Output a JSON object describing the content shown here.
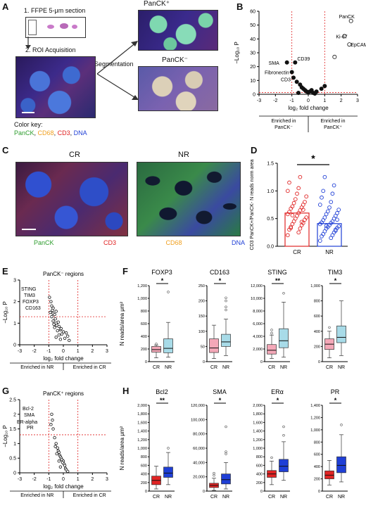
{
  "panel_letters": {
    "A": "A",
    "B": "B",
    "C": "C",
    "D": "D",
    "E": "E",
    "F": "F",
    "G": "G",
    "H": "H"
  },
  "panelA": {
    "step1": "1. FFPE 5-μm section",
    "step2": "2. ROI Acquisition",
    "step3": "3. Segmentation",
    "pos_label": "PanCK⁺",
    "neg_label": "PanCK⁻",
    "color_key_title": "Color key:",
    "color_key": [
      {
        "text": "PanCK",
        "color": "#2e9d2e"
      },
      {
        "text": "CD68",
        "color": "#f0a020"
      },
      {
        "text": "CD3",
        "color": "#e02020"
      },
      {
        "text": "DNA",
        "color": "#1f3fd6"
      }
    ]
  },
  "panelB_text": {
    "ylabel": "−Log₁₀ P",
    "xlabel": "log₂ fold change",
    "left_note": [
      "Enriched in",
      "PanCK⁻"
    ],
    "right_note": [
      "Enriched in",
      "PanCK⁺"
    ],
    "annot": [
      "PanCK",
      "Ki-67",
      "EpCAM",
      "SMA",
      "CD39",
      "Fibronectin",
      "CD3"
    ]
  },
  "panelC": {
    "cr_title": "CR",
    "nr_title": "NR",
    "legend": [
      {
        "text": "PanCK",
        "color": "#2e9d2e"
      },
      {
        "text": "CD3",
        "color": "#e02020"
      },
      {
        "text": "CD68",
        "color": "#f0a020"
      },
      {
        "text": "DNA",
        "color": "#1f3fd6"
      }
    ]
  },
  "panelD_text": {
    "ylabel": "CD3 PanCK+/PanCK- N reads norm area",
    "sig": "*"
  },
  "panelE_text": {
    "title": "PanCK⁻ regions",
    "ylabel": "−Log₁₀ P",
    "xlabel": "log₂ fold change",
    "left_note": "Enriched in NR",
    "right_note": "Enriched in CR",
    "annot": [
      "STING",
      "TIM3",
      "FOXP3",
      "CD163"
    ]
  },
  "panelF_text": {
    "ylabel": "N reads/area μm²"
  },
  "panelG_text": {
    "title": "PanCK⁺ regions",
    "ylabel": "−Log₁₀ P",
    "xlabel": "log₂ fold change",
    "left_note": "Enriched in NR",
    "right_note": "Enriched in CR",
    "annot": [
      "Bcl-2",
      "SMA",
      "ER-alpha",
      "PR"
    ]
  },
  "panelH_text": {
    "ylabel": "N reads/area μm²"
  },
  "colors": {
    "cr_pink": "#f4a8b8",
    "nr_lightblue": "#a8dbe8",
    "cr_red": "#e02424",
    "nr_blue": "#1f3fd6",
    "threshold": "#e02020"
  },
  "chart_data": [
    {
      "id": "B",
      "type": "scatter",
      "title": "",
      "xlabel": "log₂ fold change",
      "ylabel": "−Log₁₀ P",
      "xlim": [
        -3,
        3
      ],
      "ylim": [
        0,
        60
      ],
      "xticks": [
        -3,
        -2,
        -1,
        0,
        1,
        2,
        3
      ],
      "yticks": [
        0,
        10,
        20,
        30,
        40,
        50,
        60
      ],
      "points": [
        {
          "x": 2.6,
          "y": 53,
          "label": "PanCK"
        },
        {
          "x": 2.2,
          "y": 42,
          "label": "Ki-67"
        },
        {
          "x": 2.5,
          "y": 36,
          "label": "EpCAM"
        },
        {
          "x": 1.6,
          "y": 27
        },
        {
          "x": -1.3,
          "y": 23,
          "label": "SMA"
        },
        {
          "x": -0.8,
          "y": 23,
          "label": "CD39"
        },
        {
          "x": -1.0,
          "y": 16,
          "label": "Fibronectin"
        },
        {
          "x": -0.9,
          "y": 12,
          "label": "CD3"
        },
        {
          "x": -0.7,
          "y": 9
        },
        {
          "x": -0.5,
          "y": 7
        },
        {
          "x": -0.4,
          "y": 5
        },
        {
          "x": -0.3,
          "y": 4
        },
        {
          "x": -0.2,
          "y": 3
        },
        {
          "x": -0.1,
          "y": 2
        },
        {
          "x": 0.0,
          "y": 1.5
        },
        {
          "x": 0.1,
          "y": 2
        },
        {
          "x": 0.2,
          "y": 3
        },
        {
          "x": 0.3,
          "y": 1
        },
        {
          "x": 0.5,
          "y": 2
        },
        {
          "x": 0.8,
          "y": 4
        },
        {
          "x": 1.0,
          "y": 6
        },
        {
          "x": -0.6,
          "y": 1
        },
        {
          "x": 0.4,
          "y": 0.5
        }
      ],
      "thresholds": {
        "x": [
          -1,
          1
        ],
        "y": 1.3
      }
    },
    {
      "id": "D",
      "type": "bar",
      "categories": [
        "CR",
        "NR"
      ],
      "values": [
        0.6,
        0.41
      ],
      "ylim": [
        0,
        1.5
      ],
      "yticks": [
        0,
        0.5,
        1.0,
        1.5
      ],
      "colors": [
        "#e02424",
        "#1f3fd6"
      ],
      "points_cr": [
        0.2,
        0.25,
        0.3,
        0.32,
        0.35,
        0.38,
        0.4,
        0.42,
        0.45,
        0.48,
        0.5,
        0.52,
        0.55,
        0.58,
        0.6,
        0.62,
        0.65,
        0.68,
        0.7,
        0.72,
        0.75,
        0.78,
        0.8,
        0.85,
        0.9,
        0.95,
        1.0,
        1.05,
        1.15,
        1.25,
        0.33,
        0.44,
        0.56,
        0.66
      ],
      "points_nr": [
        0.1,
        0.15,
        0.18,
        0.2,
        0.22,
        0.25,
        0.27,
        0.3,
        0.32,
        0.33,
        0.35,
        0.36,
        0.38,
        0.4,
        0.42,
        0.43,
        0.45,
        0.47,
        0.5,
        0.52,
        0.55,
        0.58,
        0.6,
        0.63,
        0.66,
        0.7,
        0.75,
        0.8,
        0.88,
        0.95,
        1.0,
        1.1,
        1.25,
        0.28,
        0.37,
        0.48
      ],
      "significance": "*"
    },
    {
      "id": "E",
      "type": "scatter",
      "title": "PanCK⁻ regions",
      "xlabel": "log₂ fold change",
      "ylabel": "−Log₁₀ P",
      "xlim": [
        -3,
        3
      ],
      "ylim": [
        0,
        3
      ],
      "xticks": [
        -3,
        -2,
        -1,
        0,
        1,
        2,
        3
      ],
      "yticks": [
        0,
        1,
        2,
        3
      ],
      "thresholds": {
        "x": [
          -1,
          1
        ],
        "y": 1.3
      },
      "points": [
        {
          "x": -0.95,
          "y": 2.2,
          "label": "STING"
        },
        {
          "x": -0.85,
          "y": 2.0,
          "label": "TIM3"
        },
        {
          "x": -0.8,
          "y": 1.8,
          "label": "FOXP3"
        },
        {
          "x": -0.75,
          "y": 1.6,
          "label": "CD163"
        },
        {
          "x": -0.9,
          "y": 1.5
        },
        {
          "x": -0.7,
          "y": 1.45
        },
        {
          "x": -0.6,
          "y": 1.4
        },
        {
          "x": -0.8,
          "y": 1.3
        },
        {
          "x": -0.55,
          "y": 1.2
        },
        {
          "x": -0.7,
          "y": 1.1
        },
        {
          "x": -0.5,
          "y": 1.0
        },
        {
          "x": -0.65,
          "y": 0.95
        },
        {
          "x": -0.45,
          "y": 0.9
        },
        {
          "x": -0.3,
          "y": 0.85
        },
        {
          "x": -0.6,
          "y": 0.8
        },
        {
          "x": -0.2,
          "y": 0.7
        },
        {
          "x": -0.4,
          "y": 0.65
        },
        {
          "x": 0.0,
          "y": 0.6
        },
        {
          "x": -0.1,
          "y": 0.5
        },
        {
          "x": 0.2,
          "y": 0.55
        },
        {
          "x": -0.3,
          "y": 0.45
        },
        {
          "x": 0.3,
          "y": 0.4
        },
        {
          "x": -0.5,
          "y": 0.35
        },
        {
          "x": 0.1,
          "y": 0.3
        },
        {
          "x": -0.2,
          "y": 0.25
        },
        {
          "x": 0.4,
          "y": 0.2
        },
        {
          "x": -0.7,
          "y": 1.7
        },
        {
          "x": -0.5,
          "y": 1.55
        },
        {
          "x": -0.35,
          "y": 1.05
        },
        {
          "x": -0.15,
          "y": 0.75
        }
      ]
    },
    {
      "id": "F",
      "type": "box",
      "ylabel": "N reads/area μm²",
      "plots": [
        {
          "title": "FOXP3",
          "ylim": [
            0,
            1200
          ],
          "yticks": [
            0,
            200,
            400,
            600,
            800,
            1000,
            1200
          ],
          "sig": "*",
          "boxes": [
            {
              "cat": "CR",
              "min": 60,
              "q1": 150,
              "med": 190,
              "q3": 240,
              "max": 260,
              "out": [
                280
              ]
            },
            {
              "cat": "NR",
              "min": 70,
              "q1": 140,
              "med": 210,
              "q3": 360,
              "max": 620,
              "out": [
                1100
              ]
            }
          ]
        },
        {
          "title": "CD163",
          "ylim": [
            0,
            250
          ],
          "yticks": [
            0,
            50,
            100,
            150,
            200,
            250
          ],
          "sig": "*",
          "boxes": [
            {
              "cat": "CR",
              "min": 10,
              "q1": 30,
              "med": 45,
              "q3": 75,
              "max": 120,
              "out": []
            },
            {
              "cat": "NR",
              "min": 20,
              "q1": 50,
              "med": 65,
              "q3": 90,
              "max": 140,
              "out": [
                170,
                180,
                200,
                210
              ]
            }
          ]
        },
        {
          "title": "STING",
          "ylim": [
            0,
            12000
          ],
          "yticks": [
            0,
            2000,
            4000,
            6000,
            8000,
            10000,
            12000
          ],
          "sig": "**",
          "boxes": [
            {
              "cat": "CR",
              "min": 500,
              "q1": 1200,
              "med": 1800,
              "q3": 2700,
              "max": 4200,
              "out": [
                4500,
                5000
              ]
            },
            {
              "cat": "NR",
              "min": 700,
              "q1": 2200,
              "med": 3300,
              "q3": 5200,
              "max": 9400,
              "out": [
                10800
              ]
            }
          ]
        },
        {
          "title": "TIM3",
          "ylim": [
            0,
            1000
          ],
          "yticks": [
            0,
            200,
            400,
            600,
            800,
            1000
          ],
          "sig": "*",
          "boxes": [
            {
              "cat": "CR",
              "min": 50,
              "q1": 160,
              "med": 230,
              "q3": 300,
              "max": 400,
              "out": [
                450
              ]
            },
            {
              "cat": "NR",
              "min": 80,
              "q1": 250,
              "med": 320,
              "q3": 470,
              "max": 800,
              "out": []
            }
          ]
        }
      ]
    },
    {
      "id": "G",
      "type": "scatter",
      "title": "PanCK⁺ regions",
      "xlabel": "log₂ fold change",
      "ylabel": "−Log₁₀ P",
      "xlim": [
        -3,
        3
      ],
      "ylim": [
        0,
        2.5
      ],
      "xticks": [
        -3,
        -2,
        -1,
        0,
        1,
        2,
        3
      ],
      "yticks": [
        0,
        0.5,
        1.0,
        1.5,
        2.0,
        2.5
      ],
      "thresholds": {
        "x": [
          -1,
          1
        ],
        "y": 1.3
      },
      "points": [
        {
          "x": -0.8,
          "y": 2.0,
          "label": "Bcl-2"
        },
        {
          "x": -0.75,
          "y": 1.8,
          "label": "SMA"
        },
        {
          "x": -0.85,
          "y": 1.65,
          "label": "ER-alpha"
        },
        {
          "x": -0.7,
          "y": 1.5,
          "label": "PR"
        },
        {
          "x": -0.6,
          "y": 1.2
        },
        {
          "x": -0.5,
          "y": 1.0
        },
        {
          "x": -0.55,
          "y": 0.9
        },
        {
          "x": -0.4,
          "y": 0.85
        },
        {
          "x": -0.35,
          "y": 0.75
        },
        {
          "x": -0.3,
          "y": 0.7
        },
        {
          "x": -0.25,
          "y": 0.6
        },
        {
          "x": -0.2,
          "y": 0.55
        },
        {
          "x": -0.15,
          "y": 0.5
        },
        {
          "x": -0.1,
          "y": 0.45
        },
        {
          "x": 0.0,
          "y": 0.4
        },
        {
          "x": -0.05,
          "y": 0.35
        },
        {
          "x": 0.05,
          "y": 0.3
        },
        {
          "x": 0.1,
          "y": 0.25
        },
        {
          "x": -0.2,
          "y": 0.2
        },
        {
          "x": 0.15,
          "y": 0.15
        },
        {
          "x": -0.3,
          "y": 0.4
        },
        {
          "x": 0.2,
          "y": 0.1
        },
        {
          "x": -0.45,
          "y": 0.65
        },
        {
          "x": 0.3,
          "y": 0.05
        }
      ]
    },
    {
      "id": "H",
      "type": "box",
      "ylabel": "N reads/area μm²",
      "plots": [
        {
          "title": "Bcl2",
          "ylim": [
            0,
            2000
          ],
          "yticks": [
            0,
            200,
            400,
            600,
            800,
            1000,
            1200,
            1400,
            1600,
            1800,
            2000
          ],
          "sig": "**",
          "boxes": [
            {
              "cat": "CR",
              "min": 50,
              "q1": 150,
              "med": 250,
              "q3": 350,
              "max": 580,
              "out": []
            },
            {
              "cat": "NR",
              "min": 150,
              "q1": 320,
              "med": 420,
              "q3": 560,
              "max": 900,
              "out": [
                1000
              ]
            }
          ]
        },
        {
          "title": "SMA",
          "ylim": [
            0,
            120000
          ],
          "yticks": [
            0,
            20000,
            40000,
            60000,
            80000,
            100000,
            120000
          ],
          "sig": "*",
          "boxes": [
            {
              "cat": "CR",
              "min": 1000,
              "q1": 5000,
              "med": 8000,
              "q3": 11000,
              "max": 18000,
              "out": [
                22000,
                25000
              ]
            },
            {
              "cat": "NR",
              "min": 3000,
              "q1": 10000,
              "med": 16000,
              "q3": 24000,
              "max": 40000,
              "out": [
                52000,
                55000,
                90000
              ]
            }
          ]
        },
        {
          "title": "ERα",
          "ylim": [
            0,
            2000
          ],
          "yticks": [
            0,
            200,
            400,
            600,
            800,
            1000,
            1200,
            1400,
            1600,
            1800,
            2000
          ],
          "sig": "*",
          "boxes": [
            {
              "cat": "CR",
              "min": 150,
              "q1": 320,
              "med": 400,
              "q3": 480,
              "max": 700,
              "out": [
                780
              ]
            },
            {
              "cat": "NR",
              "min": 250,
              "q1": 450,
              "med": 580,
              "q3": 740,
              "max": 1150,
              "out": [
                1300,
                1500
              ]
            }
          ]
        },
        {
          "title": "PR",
          "ylim": [
            0,
            1400
          ],
          "yticks": [
            0,
            200,
            400,
            600,
            800,
            1000,
            1200,
            1400
          ],
          "sig": "*",
          "boxes": [
            {
              "cat": "CR",
              "min": 100,
              "q1": 200,
              "med": 260,
              "q3": 330,
              "max": 500,
              "out": []
            },
            {
              "cat": "NR",
              "min": 150,
              "q1": 300,
              "med": 420,
              "q3": 560,
              "max": 920,
              "out": [
                1080
              ]
            }
          ]
        }
      ]
    }
  ]
}
